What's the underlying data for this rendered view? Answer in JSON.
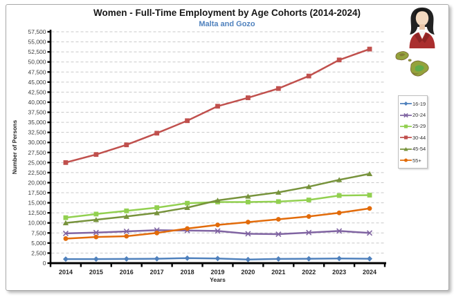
{
  "chart_data": {
    "type": "line",
    "title": "Women - Full-Time Employment by Age Cohorts (2014-2024)",
    "subtitle": "Malta and Gozo",
    "xlabel": "Years",
    "ylabel": "Number of Persons",
    "categories": [
      "2014",
      "2015",
      "2016",
      "2017",
      "2018",
      "2019",
      "2020",
      "2021",
      "2022",
      "2023",
      "2024"
    ],
    "ylim": [
      0,
      57500
    ],
    "ytick_step": 2500,
    "ytick_labels": [
      "0",
      "2,500",
      "5,000",
      "7,500",
      "10,000",
      "12,500",
      "15,000",
      "17,500",
      "20,000",
      "22,500",
      "25,000",
      "27,500",
      "30,000",
      "32,500",
      "35,000",
      "37,500",
      "40,000",
      "42,500",
      "45,000",
      "47,500",
      "50,000",
      "52,500",
      "55,000",
      "57,500"
    ],
    "grid": "horizontal-dashed",
    "legend_position": "right",
    "series": [
      {
        "name": "16-19",
        "color": "#4f81bd",
        "marker": "diamond",
        "values": [
          1000,
          1000,
          1050,
          1100,
          1250,
          1150,
          900,
          1050,
          1100,
          1150,
          1100
        ]
      },
      {
        "name": "20-24",
        "color": "#8064a2",
        "marker": "x",
        "values": [
          7400,
          7600,
          7900,
          8200,
          8100,
          8000,
          7300,
          7200,
          7600,
          8000,
          7500
        ]
      },
      {
        "name": "25-29",
        "color": "#92d050",
        "marker": "square",
        "values": [
          11300,
          12200,
          13000,
          13800,
          14900,
          15200,
          15200,
          15300,
          15700,
          16800,
          16900
        ]
      },
      {
        "name": "30-44",
        "color": "#c0504d",
        "marker": "square",
        "values": [
          25000,
          27000,
          29400,
          32300,
          35400,
          39000,
          41100,
          43400,
          46500,
          50500,
          53200
        ]
      },
      {
        "name": "45-54",
        "color": "#77933c",
        "marker": "triangle",
        "values": [
          10000,
          10800,
          11600,
          12500,
          13800,
          15600,
          16600,
          17600,
          19000,
          20700,
          22200
        ]
      },
      {
        "name": "55+",
        "color": "#e26b0a",
        "marker": "circle",
        "values": [
          6100,
          6500,
          6700,
          7500,
          8600,
          9500,
          10200,
          10900,
          11600,
          12500,
          13600
        ]
      }
    ],
    "axis_color": "#000000",
    "gridline_color": "#c8c8c8",
    "tick_label_color": "#3d3d3d"
  },
  "icons": {
    "avatar": "woman-avatar-icon",
    "map": "malta-map-icon"
  }
}
